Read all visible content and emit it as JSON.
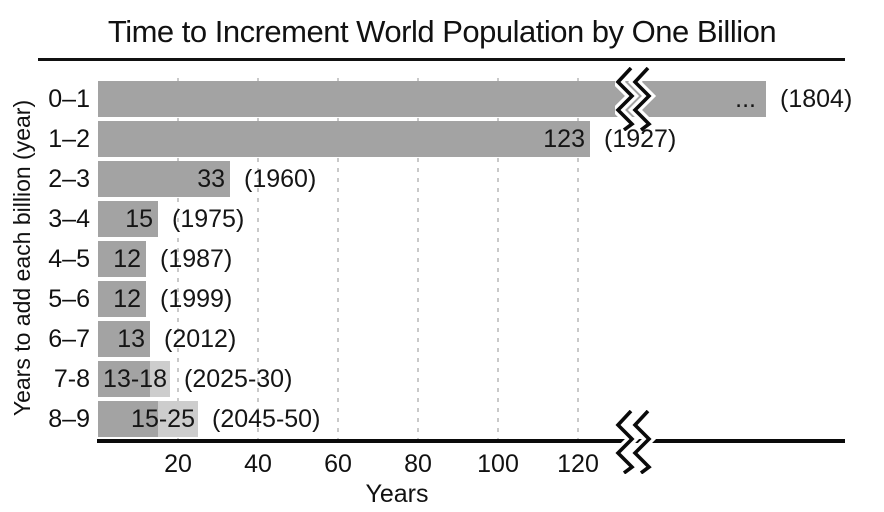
{
  "chart_data": {
    "type": "bar",
    "orientation": "horizontal",
    "title": "Time to Increment World Population by One Billion",
    "xlabel": "Years",
    "ylabel": "Years to add each billion (year)",
    "x_ticks": [
      20,
      40,
      60,
      80,
      100,
      120
    ],
    "xlim": [
      0,
      187
    ],
    "grid": "vertical-dashed",
    "legend": "none",
    "axis_break": {
      "present": true,
      "position_years": 135
    },
    "rows": [
      {
        "category": "0–1",
        "years": null,
        "years_display": 167,
        "broken": true,
        "bar_label": "...",
        "year_label": "(1804)"
      },
      {
        "category": "1–2",
        "years": 123,
        "bar_label": "123",
        "year_label": "(1927)"
      },
      {
        "category": "2–3",
        "years": 33,
        "bar_label": "33",
        "year_label": "(1960)"
      },
      {
        "category": "3–4",
        "years": 15,
        "bar_label": "15",
        "year_label": "(1975)"
      },
      {
        "category": "4–5",
        "years": 12,
        "bar_label": "12",
        "year_label": "(1987)"
      },
      {
        "category": "5–6",
        "years": 12,
        "bar_label": "12",
        "year_label": "(1999)"
      },
      {
        "category": "6–7",
        "years": 13,
        "bar_label": "13",
        "year_label": "(2012)"
      },
      {
        "category": "7-8",
        "years": 13,
        "years_max": 18,
        "bar_label": "13-18",
        "year_label": "(2025-30)"
      },
      {
        "category": "8–9",
        "years": 15,
        "years_max": 25,
        "bar_label": "15-25",
        "year_label": "(2045-50)"
      }
    ],
    "colors": {
      "bar": "#a3a3a3",
      "bar_projection": "#cdcdcd",
      "grid": "#c9c9c9",
      "axis": "#0a0a0a",
      "text": "#111111"
    }
  }
}
